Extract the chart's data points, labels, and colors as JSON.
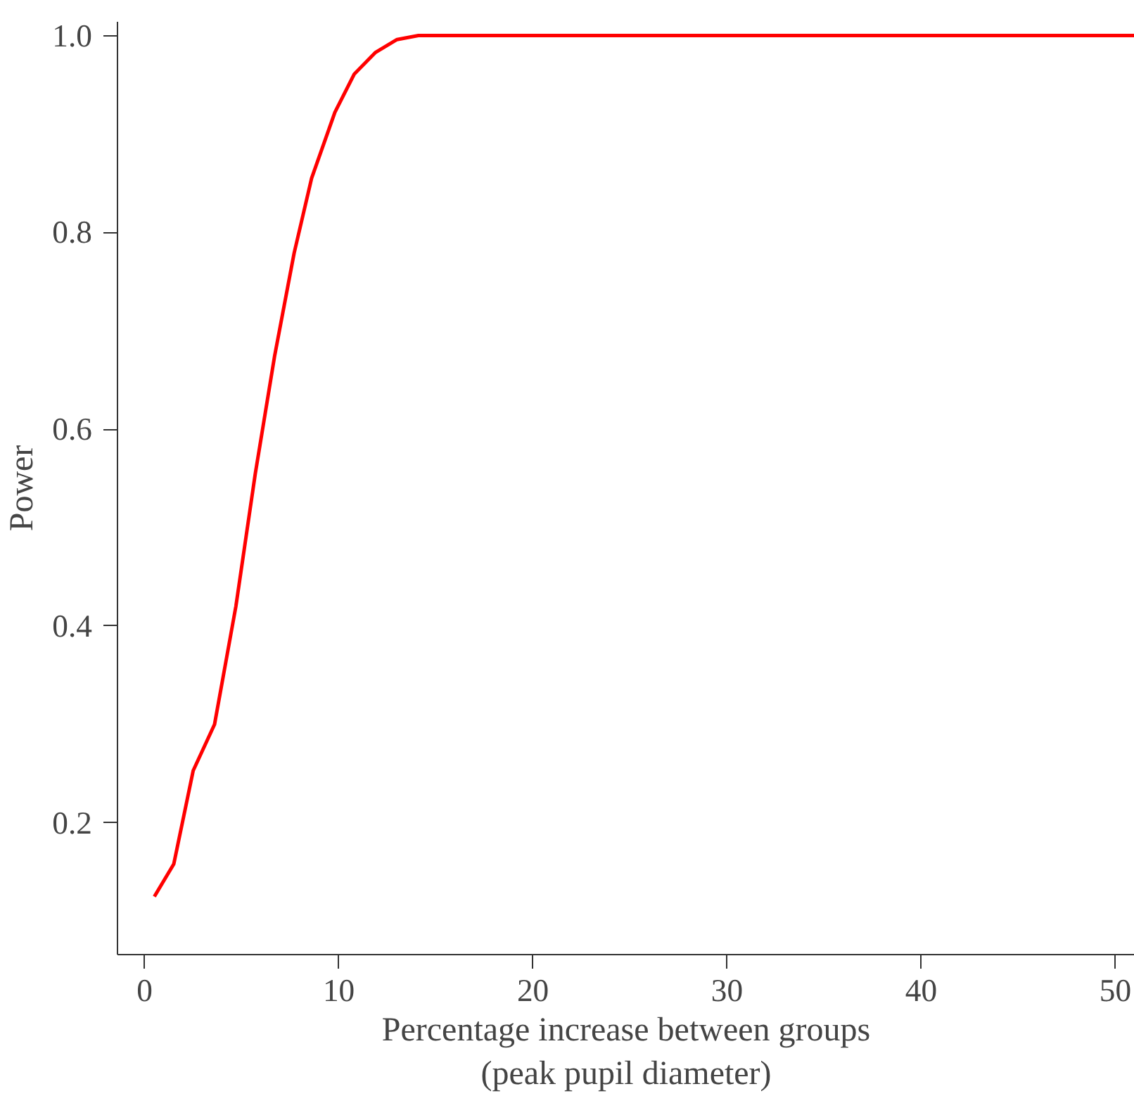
{
  "chart_data": {
    "type": "line",
    "xlabel": "Percentage increase between groups\n(peak pupil diameter)",
    "ylabel": "Power",
    "x": [
      0.5,
      1.5,
      2.5,
      3.6,
      4.7,
      5.7,
      6.7,
      7.7,
      8.6,
      9.8,
      10.8,
      11.9,
      13,
      14.1,
      15,
      20,
      30,
      40,
      51
    ],
    "series": [
      {
        "color": "#ff0000",
        "values": [
          0.125,
          0.158,
          0.253,
          0.3,
          0.42,
          0.555,
          0.675,
          0.779,
          0.855,
          0.922,
          0.961,
          0.983,
          0.996,
          1.0,
          1.0,
          1.0,
          1.0,
          1.0,
          1.0
        ]
      }
    ],
    "xlim": [
      -1.4,
      51
    ],
    "ylim": [
      0.066,
      1.014
    ],
    "xticks": [
      0,
      10,
      20,
      30,
      40,
      50
    ],
    "yticks": [
      0.2,
      0.4,
      0.6,
      0.8,
      {
        "value": 1,
        "label": "1.0"
      }
    ],
    "grid": false,
    "marker": "none",
    "line_style": "solid"
  }
}
